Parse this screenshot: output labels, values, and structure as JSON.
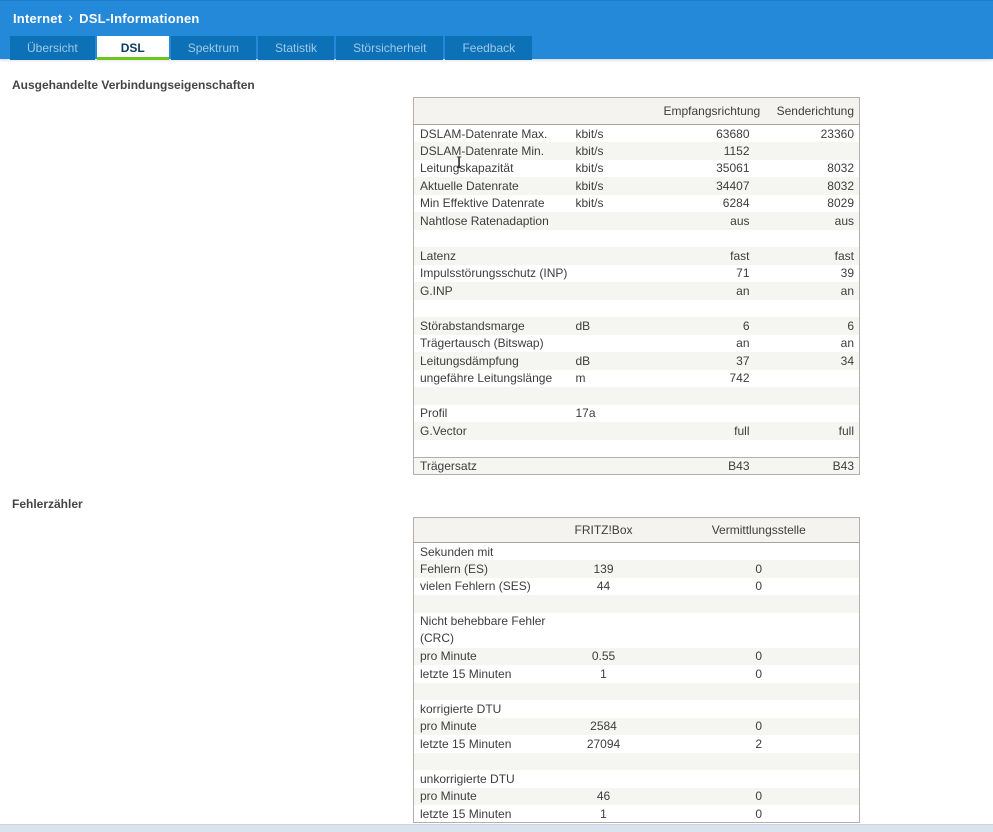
{
  "breadcrumb": {
    "section": "Internet",
    "separator": "›",
    "page": "DSL-Informationen"
  },
  "tabs": [
    {
      "label": "Übersicht",
      "active": false
    },
    {
      "label": "DSL",
      "active": true
    },
    {
      "label": "Spektrum",
      "active": false
    },
    {
      "label": "Statistik",
      "active": false
    },
    {
      "label": "Störsicherheit",
      "active": false
    },
    {
      "label": "Feedback",
      "active": false
    }
  ],
  "sections": {
    "connection": {
      "title": "Ausgehandelte Verbindungseigenschaften"
    },
    "errors": {
      "title": "Fehlerzähler"
    }
  },
  "connection_table": {
    "headers": [
      "",
      "",
      "Empfangsrichtung",
      "Senderichtung"
    ],
    "rows": [
      {
        "cells": [
          "DSLAM-Datenrate Max.",
          "kbit/s",
          "63680",
          "23360"
        ]
      },
      {
        "cells": [
          "DSLAM-Datenrate Min.",
          "kbit/s",
          "1152",
          ""
        ]
      },
      {
        "cells": [
          "Leitungskapazität",
          "kbit/s",
          "35061",
          "8032"
        ]
      },
      {
        "cells": [
          "Aktuelle Datenrate",
          "kbit/s",
          "34407",
          "8032"
        ]
      },
      {
        "cells": [
          "Min Effektive Datenrate",
          "kbit/s",
          "6284",
          "8029"
        ]
      },
      {
        "cells": [
          "Nahtlose Ratenadaption",
          "",
          "aus",
          "aus"
        ]
      },
      {
        "cells": [
          "",
          "",
          "",
          ""
        ]
      },
      {
        "cells": [
          "Latenz",
          "",
          "fast",
          "fast"
        ]
      },
      {
        "cells": [
          "Impulsstörungsschutz (INP)",
          "",
          "71",
          "39"
        ]
      },
      {
        "cells": [
          "G.INP",
          "",
          "an",
          "an"
        ]
      },
      {
        "cells": [
          "",
          "",
          "",
          ""
        ]
      },
      {
        "cells": [
          "Störabstandsmarge",
          "dB",
          "6",
          "6"
        ]
      },
      {
        "cells": [
          "Trägertausch (Bitswap)",
          "",
          "an",
          "an"
        ]
      },
      {
        "cells": [
          "Leitungsdämpfung",
          "dB",
          "37",
          "34"
        ]
      },
      {
        "cells": [
          "ungefähre Leitungslänge",
          "m",
          "742",
          ""
        ]
      },
      {
        "cells": [
          "",
          "",
          "",
          ""
        ]
      },
      {
        "cells": [
          "Profil",
          "17a",
          "",
          ""
        ]
      },
      {
        "cells": [
          "G.Vector",
          "",
          "full",
          "full"
        ]
      },
      {
        "cells": [
          "",
          "",
          "",
          ""
        ]
      },
      {
        "cells": [
          "Trägersatz",
          "",
          "B43",
          "B43"
        ],
        "divider": true
      }
    ]
  },
  "error_table": {
    "headers": [
      "",
      "FRITZ!Box",
      "Vermittlungsstelle"
    ],
    "rows": [
      {
        "cells": [
          "Sekunden mit",
          "",
          ""
        ]
      },
      {
        "cells": [
          "Fehlern (ES)",
          "139",
          "0"
        ]
      },
      {
        "cells": [
          "vielen Fehlern (SES)",
          "44",
          "0"
        ]
      },
      {
        "cells": [
          "",
          "",
          ""
        ]
      },
      {
        "cells": [
          "Nicht behebbare Fehler\n(CRC)",
          "",
          ""
        ],
        "tall": true
      },
      {
        "cells": [
          "pro Minute",
          "0.55",
          "0"
        ]
      },
      {
        "cells": [
          "letzte 15 Minuten",
          "1",
          "0"
        ]
      },
      {
        "cells": [
          "",
          "",
          ""
        ]
      },
      {
        "cells": [
          "korrigierte DTU",
          "",
          ""
        ]
      },
      {
        "cells": [
          "pro Minute",
          "2584",
          "0"
        ]
      },
      {
        "cells": [
          "letzte 15 Minuten",
          "27094",
          "2"
        ]
      },
      {
        "cells": [
          "",
          "",
          ""
        ]
      },
      {
        "cells": [
          "unkorrigierte DTU",
          "",
          ""
        ]
      },
      {
        "cells": [
          "pro Minute",
          "46",
          "0"
        ]
      },
      {
        "cells": [
          "letzte 15 Minuten",
          "1",
          "0"
        ]
      }
    ]
  },
  "cursor": {
    "glyph": "I"
  },
  "colors": {
    "header_blue": "#2389d8",
    "inactive_tab_blue": "#0d71b8",
    "active_tab_underline_green": "#6fc41f",
    "stripe_gray": "#f5f5f2",
    "table_border": "#b3b0ac",
    "footer_strip": "#d9e3ee"
  }
}
